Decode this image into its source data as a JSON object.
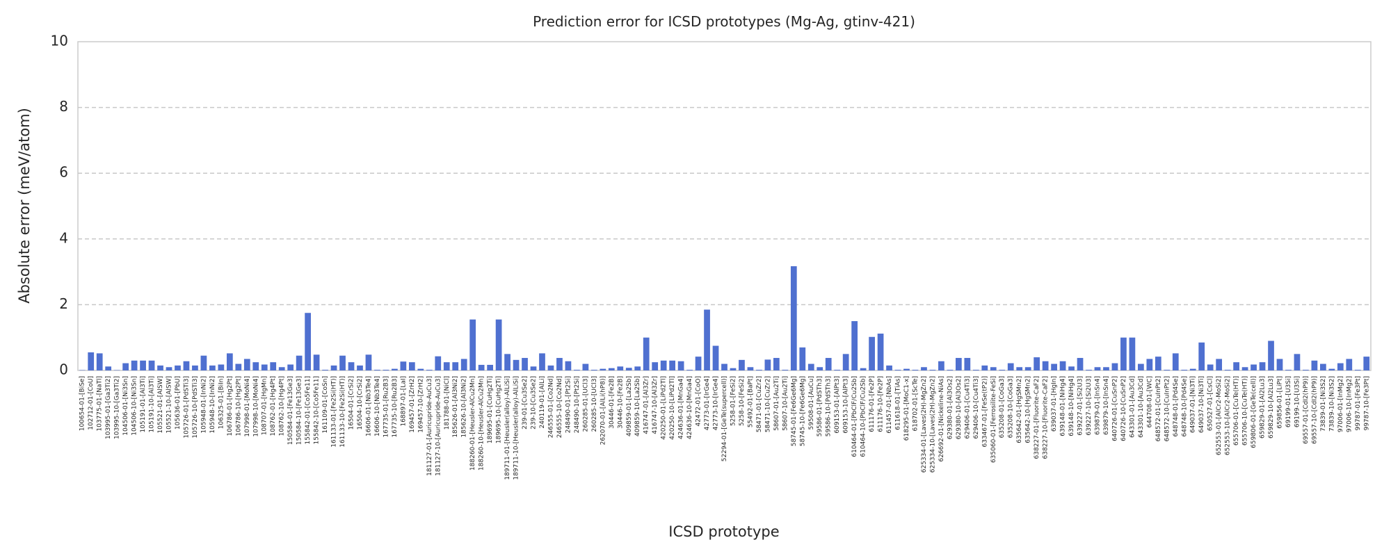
{
  "chart_data": {
    "type": "bar",
    "title": "Prediction error for ICSD prototypes (Mg-Ag, gtinv-421)",
    "xlabel": "ICSD prototype",
    "ylabel": "Absolute error (meV/atom)",
    "color": "#4f70d0",
    "grid": true,
    "ylim": [
      0,
      10
    ],
    "yticks": [
      0,
      2,
      4,
      6,
      8,
      10
    ],
    "categories": [
      "100654-01-[BiSe]",
      "102712-01-[CoU]",
      "103775-01-[NaTl]",
      "103995-01-[Ga3Ti2]",
      "103995-10-[Ga3Ti2]",
      "104506-01-[Ni3Sn]",
      "104506-10-[Ni3Sn]",
      "105191-01-[Al3Ti]",
      "105191-10-[Al3Ti]",
      "105521-01-[AlSW]",
      "105521-10-[AlSW]",
      "105636-01-[PbU]",
      "105726-01-[PdSTi3]",
      "105726-10-[PdSTi3]",
      "105948-01-[InNi2]",
      "105948-10-[InNi2]",
      "106325-01-[BiIn]",
      "106786-01-[Hg2Pt]",
      "106786-10-[Hg2Pt]",
      "107998-01-[MoNi4]",
      "107998-10-[MoNi4]",
      "108707-01-[HgMn]",
      "108762-01-[Hg4Pt]",
      "108762-10-[Hg4Pt]",
      "150584-01-[Fe13Ge3]",
      "150584-10-[Fe13Ge3]",
      "155842-01-[Co5Fe11]",
      "155842-10-[Co5Fe11]",
      "161109-01-[CoSn]",
      "161133-01-[Fe2Si(HT)]",
      "161133-10-[Fe2Si(HT)]",
      "16504-01-[CrSi2]",
      "16504-10-[CrSi2]",
      "16606-01-[Nb3Te4]",
      "16606-10-[Nb3Te4]",
      "167735-01-[Ru2B3]",
      "167735-10-[Ru2B3]",
      "168897-01-[LaI]",
      "169457-01-[ZrH2]",
      "169457-10-[ZrH2]",
      "181127-01-[Auricupride-AuCu3]",
      "181127-10-[Auricupride-AuCu3]",
      "181788-01-[NiCl]",
      "185626-01-[Al3Ni2]",
      "185626-10-[Al3Ni2]",
      "188260-01-[Heusler-AlCu2Mn]",
      "188260-10-[Heusler-AlCu2Mn]",
      "189695-01-[CuHg2Ti]",
      "189695-10-[CuHg2Ti]",
      "189711-01-[Heusler(alloy)-AlLiSi]",
      "189711-10-[Heusler(alloy)-AlLiSi]",
      "239-01-[Cu3Se2]",
      "239-10-[Cu3Se2]",
      "240119-01-[AlLi]",
      "246555-01-[Co2Nd]",
      "246555-10-[Co2Nd]",
      "248490-01-[Pt2Si]",
      "248490-10-[Pt2Si]",
      "260285-01-[UCl3]",
      "260285-10-[UCl3]",
      "262070-01-[AlLi(hP8)]",
      "30446-01-[Fe2B]",
      "30446-10-[Fe2B]",
      "409859-01-[La2Sb]",
      "409859-10-[La2Sb]",
      "416747-01-[Al3Zr]",
      "416747-10-[Al3Zr]",
      "420250-01-[LiPd2Tl]",
      "420250-10-[LiPd2Tl]",
      "424636-01-[MnGa4]",
      "424636-10-[MnGa4]",
      "42472-01-[CoO]",
      "42773-01-[IrGe4]",
      "42773-10-[IrGe4]",
      "52294-01-[GeTe(supercell)]",
      "5258-01-[FeSi2]",
      "5258-10-[FeSi2]",
      "55492-01-[BaPt]",
      "58471-01-[CuZr2]",
      "58471-10-[CuZr2]",
      "58607-01-[Au2Ti]",
      "58607-10-[Au2Ti]",
      "58745-01-[Fe6Ge6Mg]",
      "58745-10-[Fe6Ge6Mg]",
      "59508-01-[AuCu]",
      "59586-01-[PdSTh3]",
      "59586-10-[PdSTh3]",
      "609153-01-[AlPt3]",
      "609153-10-[AlPt3]",
      "610464-01-[PbClF/Cu2Sb]",
      "610464-10-[PbClF/Cu2Sb]",
      "611176-01-[Fe2P]",
      "611176-10-[Fe2P]",
      "611457-01-[NbAs]",
      "611618-01-[TiAs]",
      "618295-01-[MoC1-x]",
      "618702-01-[ScTe]",
      "625334-01-[Laves(2H)-MgZn2]",
      "625334-10-[Laves(2H)-MgZn2]",
      "626692-01-[Nickeline-NiAs]",
      "629380-01-[Al3Os2]",
      "629380-10-[Al3Os2]",
      "629406-01-[Cu4Ti3]",
      "629406-10-[Cu4Ti3]",
      "633467-01-[FeSe(tP2)]",
      "635060-01-[Ferrosilite-FeSi]",
      "635208-01-[CoGa3]",
      "635208-10-[CoGa3]",
      "635642-01-[HgSMn2]",
      "635642-10-[HgSMn2]",
      "638227-01-[Fluorite-CaF2]",
      "638227-10-[Fluorite-CaF2]",
      "639037-01-[HgIn]",
      "639148-01-[NiHg4]",
      "639148-10-[NiHg4]",
      "639227-01-[Si2U3]",
      "639227-10-[Si2U3]",
      "639879-01-[InSn4]",
      "639879-10-[InSn4]",
      "640726-01-[CuSnP2]",
      "640726-10-[CuSnP2]",
      "643301-01-[Au3Cd]",
      "643301-10-[Au3Cd]",
      "644708-01-[WC]",
      "648572-01-[CuInPt2]",
      "648572-10-[CuInPt2]",
      "648748-01-[Pd4Se]",
      "648748-10-[Pd4Se]",
      "649037-01-[Ni3Ti]",
      "649037-10-[Ni3Ti]",
      "650527-01-[CsCl]",
      "652553-01-[AlCr2-MoSi2]",
      "652553-10-[AlCr2-MoSi2]",
      "655706-01-[CuTe(HT)]",
      "655706-10-[CuTe(HT)]",
      "659806-01-[GeTe(cell)]",
      "659829-01-[Al2Lu3]",
      "659829-10-[Al2Lu3]",
      "659856-01-[LiPt]",
      "69199-01-[U3Si]",
      "69199-10-[U3Si]",
      "69557-01-[CdI2(hP9)]",
      "69557-10-[CdI2(hP9)]",
      "73839-01-[Ni3S2]",
      "73839-10-[Ni3S2]",
      "97006-01-[InMg2]",
      "97006-10-[InMg2]",
      "99787-01-[Fe3Pt]",
      "99787-10-[Fe3Pt]"
    ],
    "values": [
      0.01,
      0.55,
      0.52,
      0.12,
      0.01,
      0.22,
      0.3,
      0.3,
      0.3,
      0.15,
      0.1,
      0.15,
      0.28,
      0.15,
      0.45,
      0.15,
      0.18,
      0.52,
      0.2,
      0.35,
      0.25,
      0.18,
      0.25,
      0.1,
      0.18,
      0.45,
      1.75,
      0.48,
      0.02,
      0.15,
      0.45,
      0.25,
      0.15,
      0.48,
      0.02,
      0.02,
      0.05,
      0.27,
      0.25,
      0.05,
      0.02,
      0.43,
      0.25,
      0.25,
      0.35,
      1.55,
      0.17,
      0.17,
      1.55,
      0.5,
      0.32,
      0.38,
      0.12,
      0.52,
      0.15,
      0.38,
      0.28,
      0.02,
      0.2,
      0.02,
      0.05,
      0.07,
      0.12,
      0.08,
      0.12,
      1.0,
      0.25,
      0.3,
      0.3,
      0.28,
      0.02,
      0.42,
      1.85,
      0.75,
      0.2,
      0.07,
      0.32,
      0.1,
      0.02,
      0.33,
      0.38,
      0.02,
      3.17,
      0.7,
      0.2,
      0.1,
      0.38,
      0.02,
      0.5,
      1.5,
      0.07,
      1.02,
      1.12,
      0.15,
      0.02,
      0.05,
      0.02,
      0.1,
      0.02,
      0.28,
      0.02,
      0.38,
      0.38,
      0.02,
      0.15,
      0.1,
      0.02,
      0.22,
      0.1,
      0.1,
      0.4,
      0.28,
      0.2,
      0.28,
      0.12,
      0.38,
      0.02,
      0.1,
      0.1,
      0.22,
      1.0,
      1.0,
      0.2,
      0.35,
      0.42,
      0.02,
      0.52,
      0.02,
      0.05,
      0.85,
      0.18,
      0.35,
      0.02,
      0.25,
      0.1,
      0.18,
      0.25,
      0.9,
      0.35,
      0.02,
      0.5,
      0.02,
      0.3,
      0.2,
      0.05,
      0.22,
      0.35,
      0.02,
      0.42
    ]
  }
}
